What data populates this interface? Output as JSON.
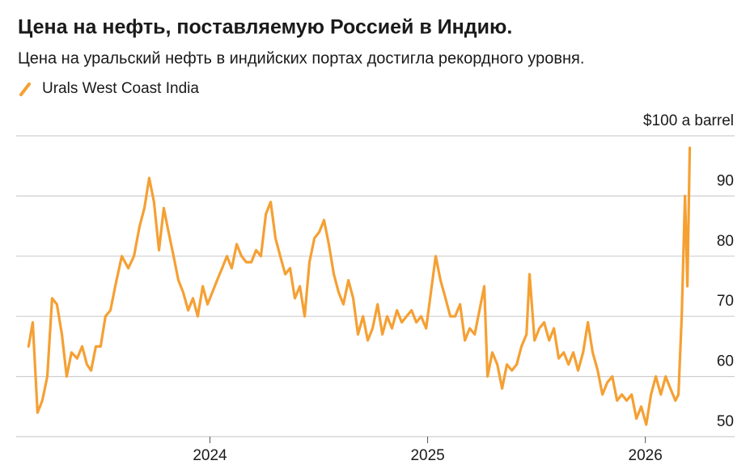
{
  "chart_data": {
    "type": "line",
    "title": "Цена на нефть, поставляемую Россией в Индию.",
    "subtitle": "Цена на уральский нефть в индийских портах достигла рекордного уровня.",
    "xlim": [
      2023.11,
      2026.41
    ],
    "xticks": [
      2024,
      2025,
      2026
    ],
    "ylim": [
      50,
      100
    ],
    "yticks": [
      50,
      60,
      70,
      80,
      90,
      {
        "value": 100,
        "label": "$100 a barrel"
      }
    ],
    "grid": true,
    "legend": "top-left",
    "x": [
      2023.167,
      2023.186,
      2023.208,
      2023.23,
      2023.253,
      2023.275,
      2023.297,
      2023.32,
      2023.342,
      2023.364,
      2023.39,
      2023.413,
      2023.435,
      2023.454,
      2023.476,
      2023.498,
      2023.52,
      2023.543,
      2023.565,
      2023.595,
      2023.625,
      2023.651,
      2023.677,
      2023.699,
      2023.721,
      2023.743,
      2023.766,
      2023.788,
      2023.81,
      2023.833,
      2023.855,
      2023.877,
      2023.9,
      2023.922,
      2023.944,
      2023.967,
      2023.989,
      2024.011,
      2024.033,
      2024.056,
      2024.078,
      2024.1,
      2024.123,
      2024.145,
      2024.167,
      2024.19,
      2024.212,
      2024.234,
      2024.257,
      2024.279,
      2024.301,
      2024.323,
      2024.346,
      2024.368,
      2024.39,
      2024.413,
      2024.435,
      2024.457,
      2024.48,
      2024.502,
      2024.524,
      2024.546,
      2024.569,
      2024.591,
      2024.613,
      2024.636,
      2024.658,
      2024.68,
      2024.703,
      2024.725,
      2024.747,
      2024.77,
      2024.792,
      2024.814,
      2024.836,
      2024.859,
      2024.881,
      2024.903,
      2024.926,
      2024.948,
      2024.97,
      2024.993,
      2025.015,
      2025.037,
      2025.059,
      2025.082,
      2025.104,
      2025.126,
      2025.149,
      2025.171,
      2025.193,
      2025.216,
      2025.238,
      2025.26,
      2025.275,
      2025.297,
      2025.32,
      2025.342,
      2025.364,
      2025.387,
      2025.409,
      2025.431,
      2025.454,
      2025.468,
      2025.491,
      2025.513,
      2025.535,
      2025.558,
      2025.58,
      2025.602,
      2025.625,
      2025.647,
      2025.669,
      2025.691,
      2025.714,
      2025.736,
      2025.758,
      2025.781,
      2025.803,
      2025.825,
      2025.848,
      2025.87,
      2025.892,
      2025.914,
      2025.937,
      2025.959,
      2025.981,
      2026.004,
      2026.026,
      2026.048,
      2026.071,
      2026.093,
      2026.115,
      2026.138,
      2026.152,
      2026.167,
      2026.182,
      2026.193,
      2026.204
    ],
    "series": [
      {
        "name": "Urals West Coast India",
        "color": "#f5a033",
        "values": [
          65,
          69,
          54,
          56,
          60,
          73,
          72,
          67,
          60,
          64,
          63,
          65,
          62,
          61,
          65,
          65,
          70,
          71,
          75,
          80,
          78,
          80,
          85,
          88,
          93,
          89,
          81,
          88,
          84,
          80,
          76,
          74,
          71,
          73,
          70,
          75,
          72,
          74,
          76,
          78,
          80,
          78,
          82,
          80,
          79,
          79,
          81,
          80,
          87,
          89,
          83,
          80,
          77,
          78,
          73,
          75,
          70,
          79,
          83,
          84,
          86,
          82,
          77,
          74,
          72,
          76,
          73,
          67,
          70,
          66,
          68,
          72,
          67,
          70,
          68,
          71,
          69,
          70,
          71,
          69,
          70,
          68,
          74,
          80,
          76,
          73,
          70,
          70,
          72,
          66,
          68,
          67,
          71,
          75,
          60,
          64,
          62,
          58,
          62,
          61,
          62,
          65,
          67,
          77,
          66,
          68,
          69,
          66,
          68,
          63,
          64,
          62,
          64,
          61,
          64,
          69,
          64,
          61,
          57,
          59,
          60,
          56,
          57,
          56,
          57,
          53,
          55,
          52,
          57,
          60,
          57,
          60,
          58,
          56,
          57,
          70,
          90,
          75,
          98
        ]
      }
    ]
  }
}
